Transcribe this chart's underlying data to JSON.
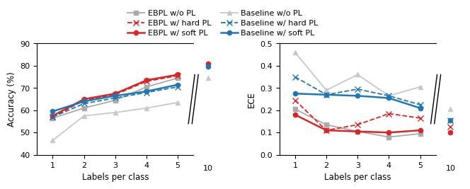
{
  "acc_x_main": [
    1,
    2,
    3,
    4,
    5
  ],
  "ebpl_wo_pl_acc": [
    56.5,
    61.0,
    64.5,
    70.5,
    74.5
  ],
  "ebpl_hard_pl_acc": [
    57.0,
    64.5,
    67.0,
    73.0,
    75.5
  ],
  "ebpl_soft_pl_acc": [
    57.5,
    65.0,
    67.5,
    73.5,
    76.0
  ],
  "baseline_wo_pl_acc": [
    46.5,
    57.5,
    59.0,
    61.0,
    63.5
  ],
  "baseline_hard_pl_acc": [
    57.0,
    63.0,
    65.5,
    68.0,
    70.5
  ],
  "baseline_soft_pl_acc": [
    59.5,
    64.0,
    66.5,
    68.5,
    71.5
  ],
  "ebpl_soft_pl_acc_10": 81.0,
  "baseline_wo_pl_acc_10": 74.5,
  "baseline_soft_pl_acc_10": 79.5,
  "ebpl_wo_pl_ece": [
    0.205,
    0.135,
    0.105,
    0.08,
    0.095
  ],
  "ebpl_hard_pl_ece": [
    0.245,
    0.11,
    0.135,
    0.185,
    0.165
  ],
  "ebpl_soft_pl_ece": [
    0.18,
    0.11,
    0.105,
    0.1,
    0.11
  ],
  "baseline_wo_pl_ece": [
    0.46,
    0.29,
    0.36,
    0.265,
    0.305
  ],
  "baseline_hard_pl_ece": [
    0.35,
    0.27,
    0.295,
    0.265,
    0.225
  ],
  "baseline_soft_pl_ece": [
    0.275,
    0.27,
    0.265,
    0.255,
    0.21
  ],
  "ebpl_hard_pl_ece_10": 0.125,
  "ebpl_soft_pl_ece_10": 0.1,
  "baseline_wo_pl_ece_10": 0.205,
  "baseline_hard_pl_ece_10": 0.155,
  "baseline_soft_pl_ece_10": 0.155,
  "color_red": "#d62728",
  "color_blue": "#1f77b4",
  "color_gray": "#aaaaaa",
  "color_lightgray": "#c8c8c8",
  "acc_ylim": [
    40,
    90
  ],
  "acc_yticks": [
    40,
    50,
    60,
    70,
    80,
    90
  ],
  "ece_ylim": [
    0.0,
    0.5
  ],
  "ece_yticks": [
    0.0,
    0.1,
    0.2,
    0.3,
    0.4,
    0.5
  ]
}
